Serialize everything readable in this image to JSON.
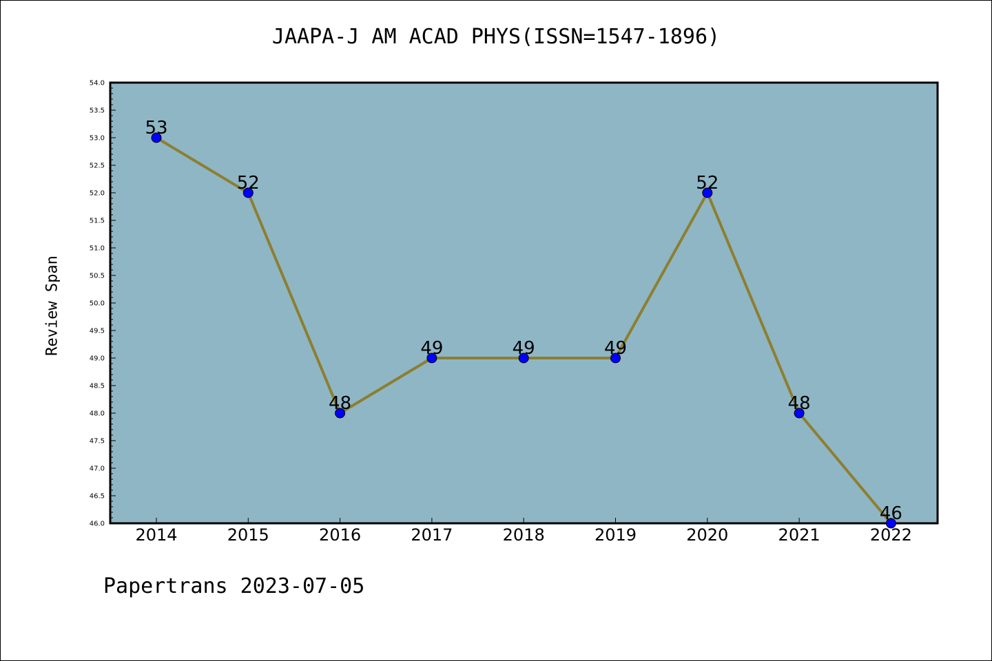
{
  "chart_data": {
    "type": "line",
    "title": "JAAPA-J AM ACAD PHYS(ISSN=1547-1896)",
    "xlabel": "",
    "ylabel": "Review Span",
    "categories": [
      "2014",
      "2015",
      "2016",
      "2017",
      "2018",
      "2019",
      "2020",
      "2021",
      "2022"
    ],
    "series": [
      {
        "values": [
          53,
          52,
          48,
          49,
          49,
          49,
          52,
          48,
          46
        ]
      }
    ],
    "ylim": [
      46.0,
      54.0
    ],
    "yticks": [
      "46.0",
      "46.5",
      "47.0",
      "47.5",
      "48.0",
      "48.5",
      "49.0",
      "49.5",
      "50.0",
      "50.5",
      "51.0",
      "51.5",
      "52.0",
      "52.5",
      "53.0",
      "53.5",
      "54.0"
    ],
    "grid": false,
    "colors": {
      "plot_background": "#8fb6c5",
      "line": "#8c7f30",
      "marker": "#0000ff"
    }
  },
  "footer": "Papertrans 2023-07-05"
}
